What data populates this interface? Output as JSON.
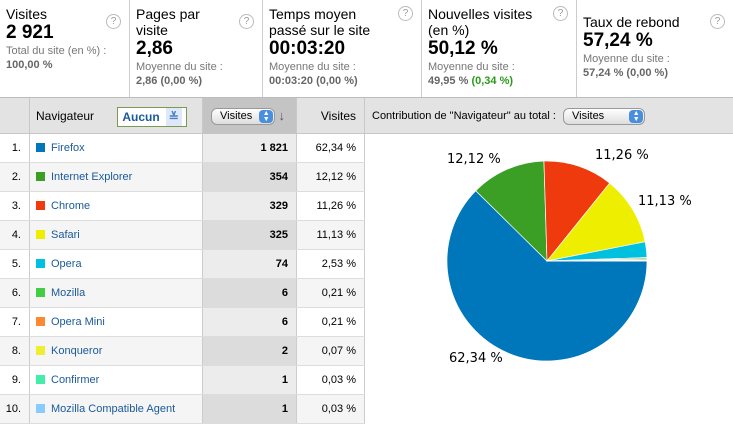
{
  "metrics": [
    {
      "title": "Visites",
      "value": "2 921",
      "sub": "Total du site (en %) :",
      "subv": "100,00 %",
      "delta": ""
    },
    {
      "title": "Pages par visite",
      "value": "2,86",
      "sub": "Moyenne du site :",
      "subv": "2,86 (0,00 %)",
      "delta": ""
    },
    {
      "title": "Temps moyen passé sur le site",
      "value": "00:03:20",
      "sub": "Moyenne du site :",
      "subv": "00:03:20 (0,00 %)",
      "delta": ""
    },
    {
      "title": "Nouvelles visites (en %)",
      "value": "50,12 %",
      "sub": "Moyenne du site :",
      "subv": "49,95 %",
      "delta": "(0,34 %)"
    },
    {
      "title": "Taux de rebond",
      "value": "57,24 %",
      "sub": "Moyenne du site :",
      "subv": "57,24 % (0,00 %)",
      "delta": ""
    }
  ],
  "help": "?",
  "header": {
    "dimension": "Navigateur",
    "secondary": "Aucun",
    "metric_select": "Visites",
    "sort_arrow": "↓",
    "col_visits": "Visites",
    "contribution": "Contribution de \"Navigateur\" au total :",
    "contribution_select": "Visites"
  },
  "rows": [
    {
      "rank": "1.",
      "name": "Firefox",
      "visits": "1 821",
      "pct": "62,34 %",
      "value": 62.34,
      "color": "#0077bb"
    },
    {
      "rank": "2.",
      "name": "Internet Explorer",
      "visits": "354",
      "pct": "12,12 %",
      "value": 12.12,
      "color": "#3a9f24"
    },
    {
      "rank": "3.",
      "name": "Chrome",
      "visits": "329",
      "pct": "11,26 %",
      "value": 11.26,
      "color": "#ee3a0c"
    },
    {
      "rank": "4.",
      "name": "Safari",
      "visits": "325",
      "pct": "11,13 %",
      "value": 11.13,
      "color": "#eeee00"
    },
    {
      "rank": "5.",
      "name": "Opera",
      "visits": "74",
      "pct": "2,53 %",
      "value": 2.53,
      "color": "#00c0e0"
    },
    {
      "rank": "6.",
      "name": "Mozilla",
      "visits": "6",
      "pct": "0,21 %",
      "value": 0.21,
      "color": "#44cc44"
    },
    {
      "rank": "7.",
      "name": "Opera Mini",
      "visits": "6",
      "pct": "0,21 %",
      "value": 0.21,
      "color": "#ff8833"
    },
    {
      "rank": "8.",
      "name": "Konqueror",
      "visits": "2",
      "pct": "0,07 %",
      "value": 0.07,
      "color": "#eeee33"
    },
    {
      "rank": "9.",
      "name": "Confirmer",
      "visits": "1",
      "pct": "0,03 %",
      "value": 0.03,
      "color": "#44eeaa"
    },
    {
      "rank": "10.",
      "name": "Mozilla Compatible Agent",
      "visits": "1",
      "pct": "0,03 %",
      "value": 0.03,
      "color": "#88ccff"
    }
  ],
  "pie_labels": [
    "62,34 %",
    "12,12 %",
    "11,26 %",
    "11,13 %"
  ]
}
